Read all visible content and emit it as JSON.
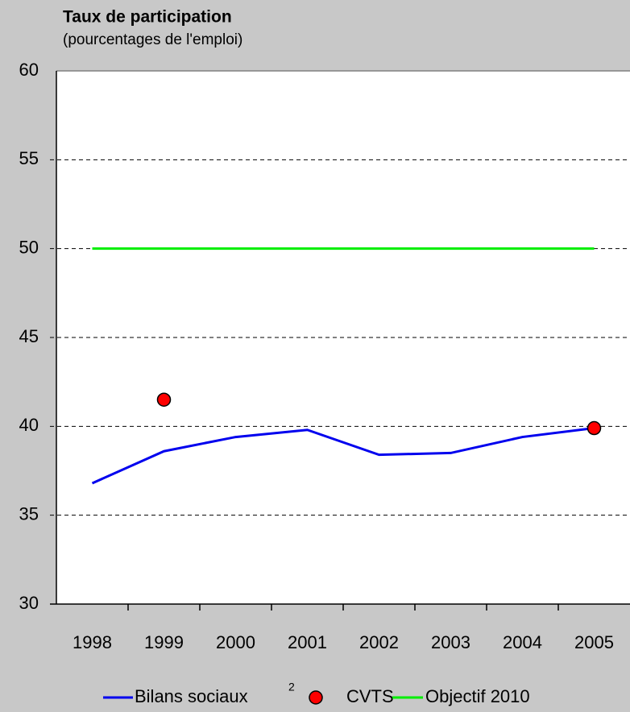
{
  "chart_data": {
    "type": "line",
    "title": "Taux de participation",
    "subtitle": "(pourcentages de l'emploi)",
    "categories": [
      "1998",
      "1999",
      "2000",
      "2001",
      "2002",
      "2003",
      "2004",
      "2005"
    ],
    "series": [
      {
        "name": "Bilans sociaux",
        "name_superscript": "2",
        "color": "#0000ee",
        "style": "line",
        "values": [
          36.8,
          38.6,
          39.4,
          39.8,
          38.4,
          38.5,
          39.4,
          39.9
        ]
      },
      {
        "name": "CVTS",
        "color": "#ff0000",
        "style": "marker",
        "values": [
          null,
          41.5,
          null,
          null,
          null,
          null,
          null,
          39.9
        ]
      },
      {
        "name": "Objectif 2010",
        "color": "#00ee00",
        "style": "line",
        "values": [
          50,
          50,
          50,
          50,
          50,
          50,
          50,
          50
        ]
      }
    ],
    "ylim": [
      30,
      60
    ],
    "yticks": [
      30,
      35,
      40,
      45,
      50,
      55,
      60
    ],
    "grid": true
  }
}
